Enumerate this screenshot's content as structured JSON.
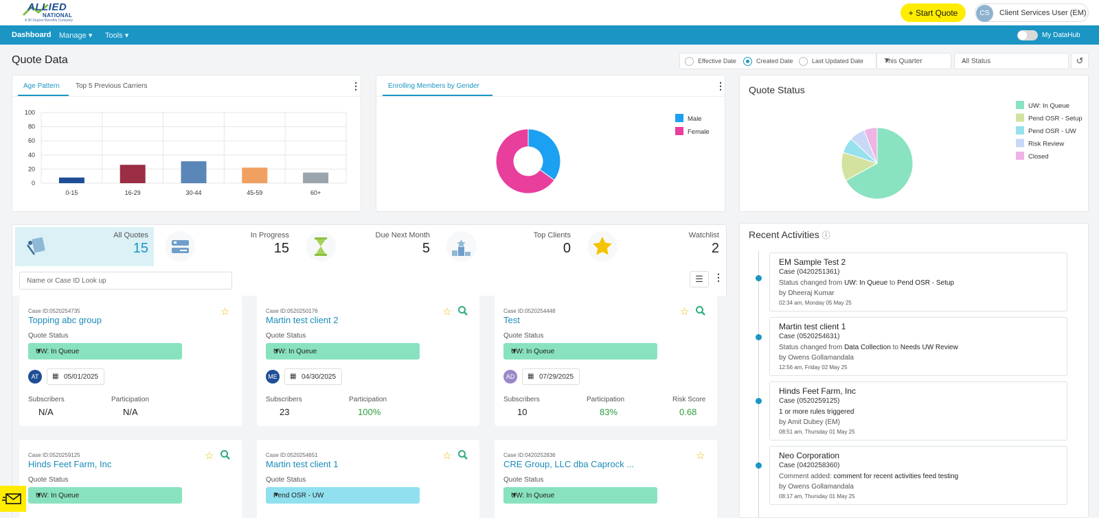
{
  "header": {
    "logo_main": "ALLIED",
    "logo_sub": "NATIONAL",
    "logo_tag": "A 90 Degree Benefits Company",
    "start_quote": "+ Start Quote",
    "user_initials": "CS",
    "user_name": "Client Services User (EM)"
  },
  "nav": {
    "dashboard": "Dashboard",
    "manage": "Manage",
    "tools": "Tools",
    "datahub": "My DataHub"
  },
  "quote_data": {
    "title": "Quote Data",
    "radios": [
      "Effective Date",
      "Created Date",
      "Last Updated Date"
    ],
    "selected_radio": "Created Date",
    "period": "This Quarter",
    "status_filter": "All Status"
  },
  "age_panel": {
    "tabs": [
      "Age Pattern",
      "Top 5 Previous Carriers"
    ],
    "active_tab": "Age Pattern"
  },
  "chart_data": [
    {
      "type": "bar",
      "title": "Age Pattern",
      "categories": [
        "0-15",
        "16-29",
        "30-44",
        "45-59",
        "60+"
      ],
      "values": [
        8,
        26,
        31,
        22,
        15
      ],
      "colors": [
        "#1f4e96",
        "#9b2d45",
        "#5b86b8",
        "#f0a060",
        "#9aa4ad"
      ],
      "y_ticks": [
        "0",
        "20",
        "40",
        "60",
        "80",
        "100"
      ],
      "ylim": [
        0,
        100
      ],
      "grid": true
    },
    {
      "type": "pie",
      "title": "Enrolling Members by Gender",
      "donut": true,
      "labels": [
        "Male",
        "Female"
      ],
      "values": [
        35,
        65
      ],
      "colors": [
        "#1ba0f2",
        "#e83e9c"
      ],
      "legend": "top-right"
    },
    {
      "type": "pie",
      "title": "Quote Status",
      "donut": false,
      "labels": [
        "UW: In Queue",
        "Pend OSR - Setup",
        "Pend OSR - UW",
        "Risk Review",
        "Closed"
      ],
      "values": [
        67,
        13,
        7,
        7,
        6
      ],
      "colors": [
        "#8ae3c0",
        "#d3e39f",
        "#97e0ee",
        "#c8d8f6",
        "#efb3e4"
      ],
      "legend": "top-right"
    }
  ],
  "gender_panel": {
    "tab": "Enrolling Members by Gender"
  },
  "quote_status_panel": {
    "title": "Quote Status"
  },
  "stats": [
    {
      "label": "All Quotes",
      "value": "15",
      "icon": "all-quotes-icon"
    },
    {
      "label": "In Progress",
      "value": "15",
      "icon": "in-progress-icon"
    },
    {
      "label": "Due Next Month",
      "value": "5",
      "icon": "hourglass-icon"
    },
    {
      "label": "Top Clients",
      "value": "0",
      "icon": "podium-icon"
    },
    {
      "label": "Watchlist",
      "value": "2",
      "icon": "star-icon"
    }
  ],
  "search": {
    "placeholder": "Name or Case ID Look up"
  },
  "quote_status_label": "Quote Status",
  "metric_labels": {
    "subscribers": "Subscribers",
    "participation": "Participation",
    "risk": "Risk Score"
  },
  "cards": [
    {
      "case_id": "Case ID:0520254735",
      "name": "Topping abc group",
      "status": "UW: In Queue",
      "initials": "AT",
      "avatar_color": "#1f4e96",
      "date": "05/01/2025",
      "subscribers": "N/A",
      "participation": "N/A",
      "risk": ""
    },
    {
      "case_id": "Case ID:0520250176",
      "name": "Martin test client 2",
      "status": "UW: In Queue",
      "initials": "ME",
      "avatar_color": "#1f4e96",
      "date": "04/30/2025",
      "subscribers": "23",
      "participation": "100%",
      "risk": ""
    },
    {
      "case_id": "Case ID:0520254448",
      "name": "Test",
      "status": "UW: In Queue",
      "initials": "AD",
      "avatar_color": "#9a86c8",
      "date": "07/29/2025",
      "subscribers": "10",
      "participation": "83%",
      "risk": "0.68"
    },
    {
      "case_id": "Case ID:0520259125",
      "name": "Hinds Feet Farm, Inc",
      "status": "UW: In Queue"
    },
    {
      "case_id": "Case ID:0520254651",
      "name": "Martin test client 1",
      "status": "Pend OSR - UW"
    },
    {
      "case_id": "Case ID:0420252836",
      "name": "CRE Group, LLC dba Caprock ...",
      "status": "UW: In Queue"
    }
  ],
  "activities": {
    "title": "Recent Activities",
    "items": [
      {
        "title": "EM Sample Test 2",
        "case": "Case (0420251361)",
        "prefix": "Status changed from ",
        "from": "UW: In Queue",
        "mid": " to ",
        "to": "Pend OSR - Setup",
        "by": "by Dheeraj Kumar",
        "time": "02:34 am, Monday 05 May 25"
      },
      {
        "title": "Martin test client 1",
        "case": "Case (0520254631)",
        "prefix": "Status changed from ",
        "from": "Data Collection",
        "mid": " to ",
        "to": "Needs UW Review",
        "by": "by Owens Gollamandala",
        "time": "12:56 am, Friday 02 May 25"
      },
      {
        "title": "Hinds Feet Farm, Inc",
        "case": "Case (0520259125)",
        "prefix": "",
        "from": "1 or more rules triggered",
        "mid": "",
        "to": "",
        "by": "by Amit Dubey (EM)",
        "time": "08:51 am, Thursday 01 May 25"
      },
      {
        "title": "Neo Corporation",
        "case": "Case (0420258360)",
        "prefix": "Comment added: ",
        "from": "comment for recent activities feed testing",
        "mid": "",
        "to": "",
        "by": "by Owens Gollamandala",
        "time": "08:17 am, Thursday 01 May 25"
      }
    ]
  }
}
